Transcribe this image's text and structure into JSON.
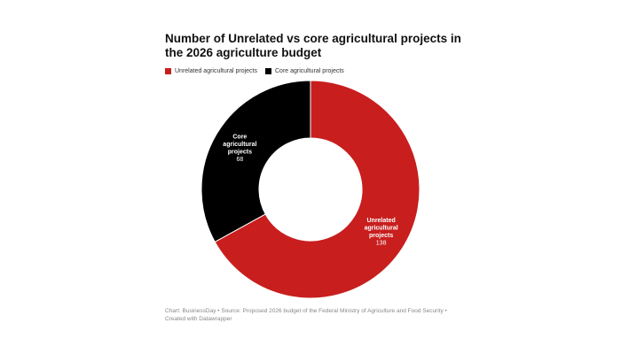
{
  "chart_data": {
    "type": "pie",
    "donut": true,
    "title": "Number of Unrelated vs core agricultural projects in the 2026 agriculture budget",
    "legend_position": "top-left",
    "categories": [
      "Unrelated agricultural projects",
      "Core agricultural projects"
    ],
    "values": [
      138,
      68
    ],
    "colors": [
      "#c81e1e",
      "#000000"
    ],
    "slice_labels": [
      [
        "Unrelated",
        "agricultural",
        "projects"
      ],
      [
        "Core",
        "agricultural",
        "projects"
      ]
    ]
  },
  "footer": {
    "text": "Chart: BusinessDay • Source: Proposed 2026 budget of the Federal Ministry of Agriculture and Food Security • Created with Datawrapper"
  }
}
